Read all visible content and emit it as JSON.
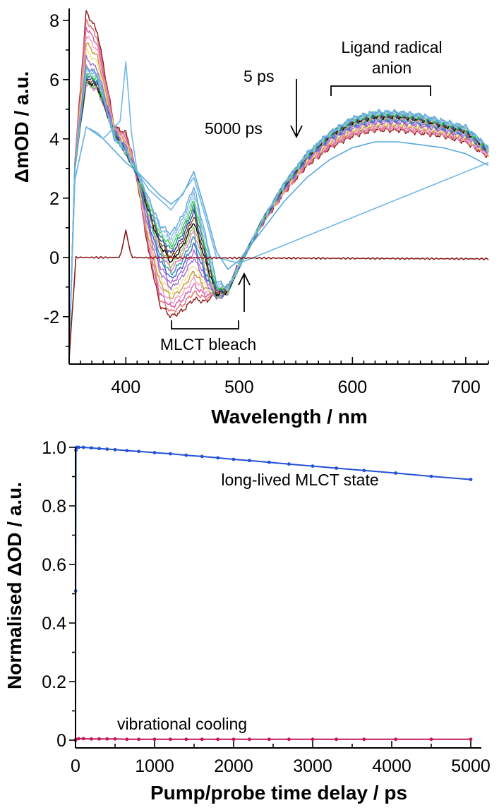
{
  "chart_data": [
    {
      "type": "line",
      "xlabel": "Wavelength / nm",
      "ylabel": "ΔmOD / a.u.",
      "xlim": [
        350,
        720
      ],
      "ylim": [
        -3.6,
        8.4
      ],
      "x_ticks": [
        400,
        500,
        600,
        700
      ],
      "y_ticks": [
        8,
        6,
        4,
        2,
        0,
        -2
      ],
      "y_tick_labels": [
        "8",
        "6",
        "4",
        "2",
        "0",
        "-2"
      ],
      "annotations": {
        "early": "5 ps",
        "late": "5000 ps",
        "radical_line1": "Ligand radical",
        "radical_line2": "anion",
        "bleach": "MLCT bleach"
      },
      "series_colors": [
        "#8b1a1a",
        "#e07070",
        "#d95aa8",
        "#f0a0c8",
        "#c79a3a",
        "#f2e08a",
        "#9a6fd0",
        "#b06ad8",
        "#3a5fcd",
        "#2aa0a0",
        "#e080c0",
        "#8fbf60",
        "#000000",
        "#7a4b1c",
        "#3c3c90",
        "#1f8a8a",
        "#3fcf3f",
        "#9fd0f0",
        "#8ab4e0",
        "#5aa8dc"
      ],
      "series": [
        {
          "key": "0ps",
          "points": [
            [
              350,
              -3.4
            ],
            [
              355,
              0
            ],
            [
              360,
              0
            ],
            [
              400,
              0
            ],
            [
              720,
              -0.05
            ]
          ]
        },
        {
          "key": "late",
          "points": [
            [
              350,
              -3.2
            ],
            [
              355,
              2.6
            ],
            [
              365,
              4.4
            ],
            [
              375,
              4.2
            ],
            [
              390,
              3.6
            ],
            [
              400,
              3.2
            ],
            [
              410,
              2.9
            ],
            [
              420,
              2.5
            ],
            [
              430,
              2.1
            ],
            [
              440,
              1.8
            ],
            [
              450,
              2.1
            ],
            [
              460,
              2.9
            ],
            [
              470,
              1.6
            ],
            [
              480,
              0.2
            ],
            [
              490,
              -0.4
            ],
            [
              500,
              -0.1
            ],
            [
              520,
              0.9
            ],
            [
              540,
              1.9
            ],
            [
              560,
              2.7
            ],
            [
              580,
              3.3
            ],
            [
              600,
              3.7
            ],
            [
              620,
              3.9
            ],
            [
              640,
              3.9
            ],
            [
              660,
              3.8
            ],
            [
              680,
              3.7
            ],
            [
              700,
              3.5
            ],
            [
              720,
              3.1
            ]
          ]
        },
        {
          "key": "5ps",
          "points": [
            [
              350,
              -3.4
            ],
            [
              355,
              3.2
            ],
            [
              365,
              8.3
            ],
            [
              375,
              7.6
            ],
            [
              390,
              4.4
            ],
            [
              400,
              4.2
            ],
            [
              405,
              3.6
            ],
            [
              410,
              2.6
            ],
            [
              420,
              0.2
            ],
            [
              430,
              -1.6
            ],
            [
              440,
              -2.0
            ],
            [
              450,
              -1.8
            ],
            [
              460,
              -1.4
            ],
            [
              470,
              -1.5
            ],
            [
              480,
              -1.2
            ],
            [
              490,
              -1.0
            ],
            [
              500,
              -0.2
            ],
            [
              520,
              1.1
            ],
            [
              540,
              2.2
            ],
            [
              560,
              3.1
            ],
            [
              580,
              3.7
            ],
            [
              600,
              4.1
            ],
            [
              620,
              4.3
            ],
            [
              640,
              4.3
            ],
            [
              660,
              4.2
            ],
            [
              680,
              4.1
            ],
            [
              700,
              3.9
            ],
            [
              720,
              3.4
            ]
          ]
        },
        {
          "key": "mid",
          "points": [
            [
              350,
              -3.3
            ],
            [
              355,
              3.0
            ],
            [
              365,
              5.8
            ],
            [
              375,
              5.6
            ],
            [
              390,
              4.2
            ],
            [
              400,
              3.5
            ],
            [
              410,
              2.8
            ],
            [
              420,
              1.4
            ],
            [
              430,
              0.2
            ],
            [
              440,
              -0.5
            ],
            [
              450,
              0.0
            ],
            [
              460,
              0.8
            ],
            [
              470,
              -0.4
            ],
            [
              480,
              -1.4
            ],
            [
              490,
              -1.2
            ],
            [
              500,
              -0.3
            ],
            [
              520,
              1.2
            ],
            [
              540,
              2.4
            ],
            [
              560,
              3.4
            ],
            [
              580,
              4.1
            ],
            [
              600,
              4.5
            ],
            [
              620,
              4.7
            ],
            [
              640,
              4.7
            ],
            [
              660,
              4.6
            ],
            [
              680,
              4.4
            ],
            [
              700,
              4.2
            ],
            [
              720,
              3.6
            ]
          ]
        },
        {
          "key": "blue",
          "points": [
            [
              350,
              -3.3
            ],
            [
              355,
              3.1
            ],
            [
              365,
              6.4
            ],
            [
              375,
              6.2
            ],
            [
              390,
              4.0
            ],
            [
              400,
              3.6
            ],
            [
              410,
              2.9
            ],
            [
              420,
              2.0
            ],
            [
              430,
              1.1
            ],
            [
              440,
              0.8
            ],
            [
              450,
              1.4
            ],
            [
              460,
              2.4
            ],
            [
              470,
              0.8
            ],
            [
              480,
              -0.8
            ],
            [
              490,
              -1.0
            ],
            [
              500,
              -0.3
            ],
            [
              520,
              1.2
            ],
            [
              540,
              2.5
            ],
            [
              560,
              3.5
            ],
            [
              580,
              4.2
            ],
            [
              600,
              4.7
            ],
            [
              620,
              4.9
            ],
            [
              640,
              4.9
            ],
            [
              660,
              4.8
            ],
            [
              680,
              4.6
            ],
            [
              700,
              4.4
            ],
            [
              720,
              3.7
            ]
          ]
        },
        {
          "key": "peak400",
          "points": [
            [
              350,
              -3.3
            ],
            [
              355,
              2.6
            ],
            [
              365,
              4.4
            ],
            [
              380,
              4.0
            ],
            [
              395,
              4.6
            ],
            [
              400,
              6.6
            ],
            [
              405,
              4.2
            ],
            [
              410,
              2.9
            ],
            [
              420,
              2.3
            ],
            [
              440,
              1.6
            ],
            [
              460,
              2.7
            ],
            [
              470,
              1.4
            ],
            [
              480,
              0.0
            ],
            [
              500,
              -0.2
            ],
            [
              720,
              3.2
            ]
          ]
        }
      ]
    },
    {
      "type": "line",
      "xlabel": "Pump/probe time delay / ps",
      "ylabel": "Normalised ΔOD / a.u.",
      "xlim": [
        -30,
        5000
      ],
      "ylim": [
        0,
        1.0
      ],
      "x_ticks": [
        0,
        1000,
        2000,
        3000,
        4000,
        5000
      ],
      "y_ticks": [
        1.0,
        0.8,
        0.6,
        0.4,
        0.2,
        0
      ],
      "y_tick_labels": [
        "1.0",
        "0.8",
        "0.6",
        "0.4",
        "0.2",
        "0"
      ],
      "annotations": {
        "long_lived": "long-lived MLCT state",
        "cooling": "vibrational cooling"
      },
      "series": [
        {
          "key": "long-lived",
          "color": "#2450d8",
          "points": [
            [
              0,
              0.0
            ],
            [
              2,
              0.51
            ],
            [
              5,
              0.99
            ],
            [
              15,
              1.0
            ],
            [
              40,
              1.0
            ],
            [
              100,
              1.0
            ],
            [
              200,
              0.998
            ],
            [
              300,
              0.996
            ],
            [
              400,
              0.994
            ],
            [
              500,
              0.992
            ],
            [
              650,
              0.989
            ],
            [
              800,
              0.986
            ],
            [
              1000,
              0.982
            ],
            [
              1200,
              0.978
            ],
            [
              1400,
              0.973
            ],
            [
              1600,
              0.969
            ],
            [
              1800,
              0.964
            ],
            [
              2000,
              0.959
            ],
            [
              2200,
              0.955
            ],
            [
              2450,
              0.949
            ],
            [
              2700,
              0.943
            ],
            [
              3000,
              0.936
            ],
            [
              3300,
              0.929
            ],
            [
              3650,
              0.921
            ],
            [
              4050,
              0.912
            ],
            [
              4500,
              0.901
            ],
            [
              5000,
              0.89
            ]
          ]
        },
        {
          "key": "cooling",
          "color": "#c2185b",
          "points": [
            [
              0,
              0.0
            ],
            [
              5,
              0.003
            ],
            [
              40,
              0.005
            ],
            [
              100,
              0.005
            ],
            [
              200,
              0.004
            ],
            [
              300,
              0.004
            ],
            [
              400,
              0.004
            ],
            [
              500,
              0.004
            ],
            [
              650,
              0.003
            ],
            [
              800,
              0.003
            ],
            [
              1000,
              0.003
            ],
            [
              1200,
              0.003
            ],
            [
              1400,
              0.003
            ],
            [
              1600,
              0.003
            ],
            [
              1800,
              0.003
            ],
            [
              2000,
              0.003
            ],
            [
              2200,
              0.003
            ],
            [
              2450,
              0.003
            ],
            [
              2700,
              0.003
            ],
            [
              3000,
              0.003
            ],
            [
              3300,
              0.003
            ],
            [
              3650,
              0.003
            ],
            [
              4050,
              0.003
            ],
            [
              4500,
              0.003
            ],
            [
              5000,
              0.003
            ]
          ]
        }
      ]
    }
  ]
}
